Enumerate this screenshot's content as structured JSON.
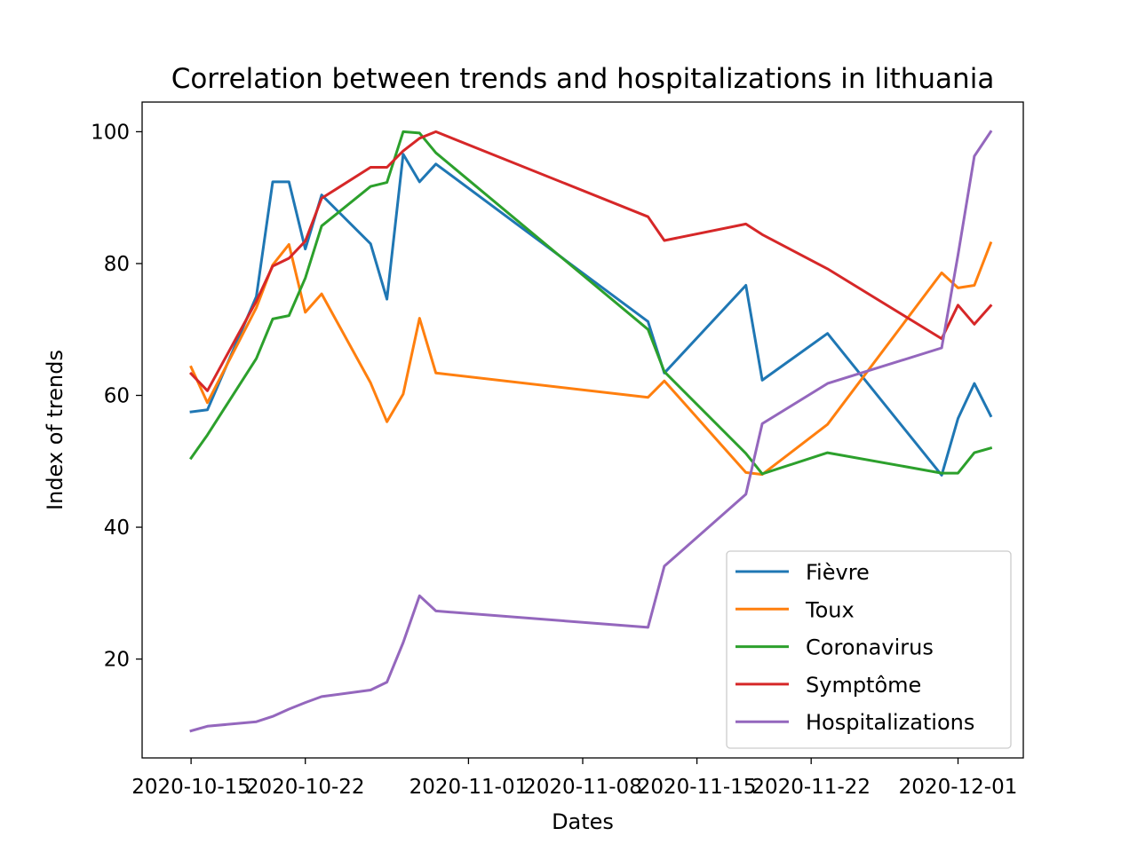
{
  "chart_data": {
    "type": "line",
    "title": "Correlation between trends and hospitalizations in lithuania",
    "xlabel": "Dates",
    "ylabel": "Index of trends",
    "xlim": [
      "2020-10-12",
      "2020-12-05"
    ],
    "ylim": [
      5,
      104.5
    ],
    "x_ticks": [
      "2020-10-15",
      "2020-10-22",
      "2020-11-01",
      "2020-11-08",
      "2020-11-15",
      "2020-11-22",
      "2020-12-01"
    ],
    "y_ticks": [
      20,
      40,
      60,
      80,
      100
    ],
    "grid": false,
    "legend_position": "lower-right",
    "series": [
      {
        "name": "Fièvre",
        "color": "#1f77b4",
        "points": [
          [
            "2020-10-15",
            57.5
          ],
          [
            "2020-10-16",
            57.8
          ],
          [
            "2020-10-19",
            75.0
          ],
          [
            "2020-10-20",
            92.4
          ],
          [
            "2020-10-21",
            92.4
          ],
          [
            "2020-10-22",
            82.2
          ],
          [
            "2020-10-23",
            90.4
          ],
          [
            "2020-10-26",
            83.0
          ],
          [
            "2020-10-27",
            74.6
          ],
          [
            "2020-10-28",
            96.6
          ],
          [
            "2020-10-29",
            92.4
          ],
          [
            "2020-10-30",
            95.1
          ],
          [
            "2020-11-12",
            71.2
          ],
          [
            "2020-11-13",
            63.4
          ],
          [
            "2020-11-18",
            76.7
          ],
          [
            "2020-11-19",
            62.3
          ],
          [
            "2020-11-23",
            69.4
          ],
          [
            "2020-11-30",
            47.9
          ],
          [
            "2020-12-01",
            56.5
          ],
          [
            "2020-12-02",
            61.8
          ],
          [
            "2020-12-03",
            56.9
          ]
        ]
      },
      {
        "name": "Toux",
        "color": "#ff7f0e",
        "points": [
          [
            "2020-10-15",
            64.3
          ],
          [
            "2020-10-16",
            58.9
          ],
          [
            "2020-10-19",
            73.3
          ],
          [
            "2020-10-20",
            79.8
          ],
          [
            "2020-10-21",
            82.9
          ],
          [
            "2020-10-22",
            72.6
          ],
          [
            "2020-10-23",
            75.4
          ],
          [
            "2020-10-26",
            61.9
          ],
          [
            "2020-10-27",
            56.0
          ],
          [
            "2020-10-28",
            60.2
          ],
          [
            "2020-10-29",
            71.7
          ],
          [
            "2020-10-30",
            63.4
          ],
          [
            "2020-11-12",
            59.7
          ],
          [
            "2020-11-13",
            62.2
          ],
          [
            "2020-11-18",
            48.3
          ],
          [
            "2020-11-19",
            48.0
          ],
          [
            "2020-11-23",
            55.6
          ],
          [
            "2020-11-30",
            78.6
          ],
          [
            "2020-12-01",
            76.3
          ],
          [
            "2020-12-02",
            76.7
          ],
          [
            "2020-12-03",
            83.1
          ]
        ]
      },
      {
        "name": "Coronavirus",
        "color": "#2ca02c",
        "points": [
          [
            "2020-10-15",
            50.5
          ],
          [
            "2020-10-16",
            54.0
          ],
          [
            "2020-10-19",
            65.6
          ],
          [
            "2020-10-20",
            71.6
          ],
          [
            "2020-10-21",
            72.1
          ],
          [
            "2020-10-22",
            77.8
          ],
          [
            "2020-10-23",
            85.7
          ],
          [
            "2020-10-26",
            91.7
          ],
          [
            "2020-10-27",
            92.3
          ],
          [
            "2020-10-28",
            100.0
          ],
          [
            "2020-10-29",
            99.8
          ],
          [
            "2020-10-30",
            96.8
          ],
          [
            "2020-11-12",
            70.0
          ],
          [
            "2020-11-13",
            63.6
          ],
          [
            "2020-11-18",
            51.2
          ],
          [
            "2020-11-19",
            48.1
          ],
          [
            "2020-11-23",
            51.3
          ],
          [
            "2020-11-30",
            48.2
          ],
          [
            "2020-12-01",
            48.2
          ],
          [
            "2020-12-02",
            51.3
          ],
          [
            "2020-12-03",
            52.0
          ]
        ]
      },
      {
        "name": "Symptôme",
        "color": "#d62728",
        "points": [
          [
            "2020-10-15",
            63.3
          ],
          [
            "2020-10-16",
            60.7
          ],
          [
            "2020-10-19",
            74.3
          ],
          [
            "2020-10-20",
            79.6
          ],
          [
            "2020-10-21",
            80.8
          ],
          [
            "2020-10-22",
            83.4
          ],
          [
            "2020-10-23",
            89.9
          ],
          [
            "2020-10-26",
            94.6
          ],
          [
            "2020-10-27",
            94.6
          ],
          [
            "2020-10-28",
            97.1
          ],
          [
            "2020-10-29",
            99.0
          ],
          [
            "2020-10-30",
            100.0
          ],
          [
            "2020-11-12",
            87.1
          ],
          [
            "2020-11-13",
            83.5
          ],
          [
            "2020-11-18",
            86.0
          ],
          [
            "2020-11-19",
            84.4
          ],
          [
            "2020-11-23",
            79.2
          ],
          [
            "2020-11-30",
            68.6
          ],
          [
            "2020-12-01",
            73.7
          ],
          [
            "2020-12-02",
            70.8
          ],
          [
            "2020-12-03",
            73.6
          ]
        ]
      },
      {
        "name": "Hospitalizations",
        "color": "#9467bd",
        "points": [
          [
            "2020-10-15",
            9.1
          ],
          [
            "2020-10-16",
            9.8
          ],
          [
            "2020-10-19",
            10.5
          ],
          [
            "2020-10-20",
            11.3
          ],
          [
            "2020-10-21",
            12.4
          ],
          [
            "2020-10-22",
            13.4
          ],
          [
            "2020-10-23",
            14.3
          ],
          [
            "2020-10-26",
            15.3
          ],
          [
            "2020-10-27",
            16.5
          ],
          [
            "2020-10-28",
            22.5
          ],
          [
            "2020-10-29",
            29.6
          ],
          [
            "2020-10-30",
            27.3
          ],
          [
            "2020-11-12",
            24.8
          ],
          [
            "2020-11-13",
            34.1
          ],
          [
            "2020-11-18",
            45.0
          ],
          [
            "2020-11-19",
            55.7
          ],
          [
            "2020-11-23",
            61.8
          ],
          [
            "2020-11-30",
            67.2
          ],
          [
            "2020-12-01",
            81.3
          ],
          [
            "2020-12-02",
            96.3
          ],
          [
            "2020-12-03",
            100.0
          ]
        ]
      }
    ]
  }
}
